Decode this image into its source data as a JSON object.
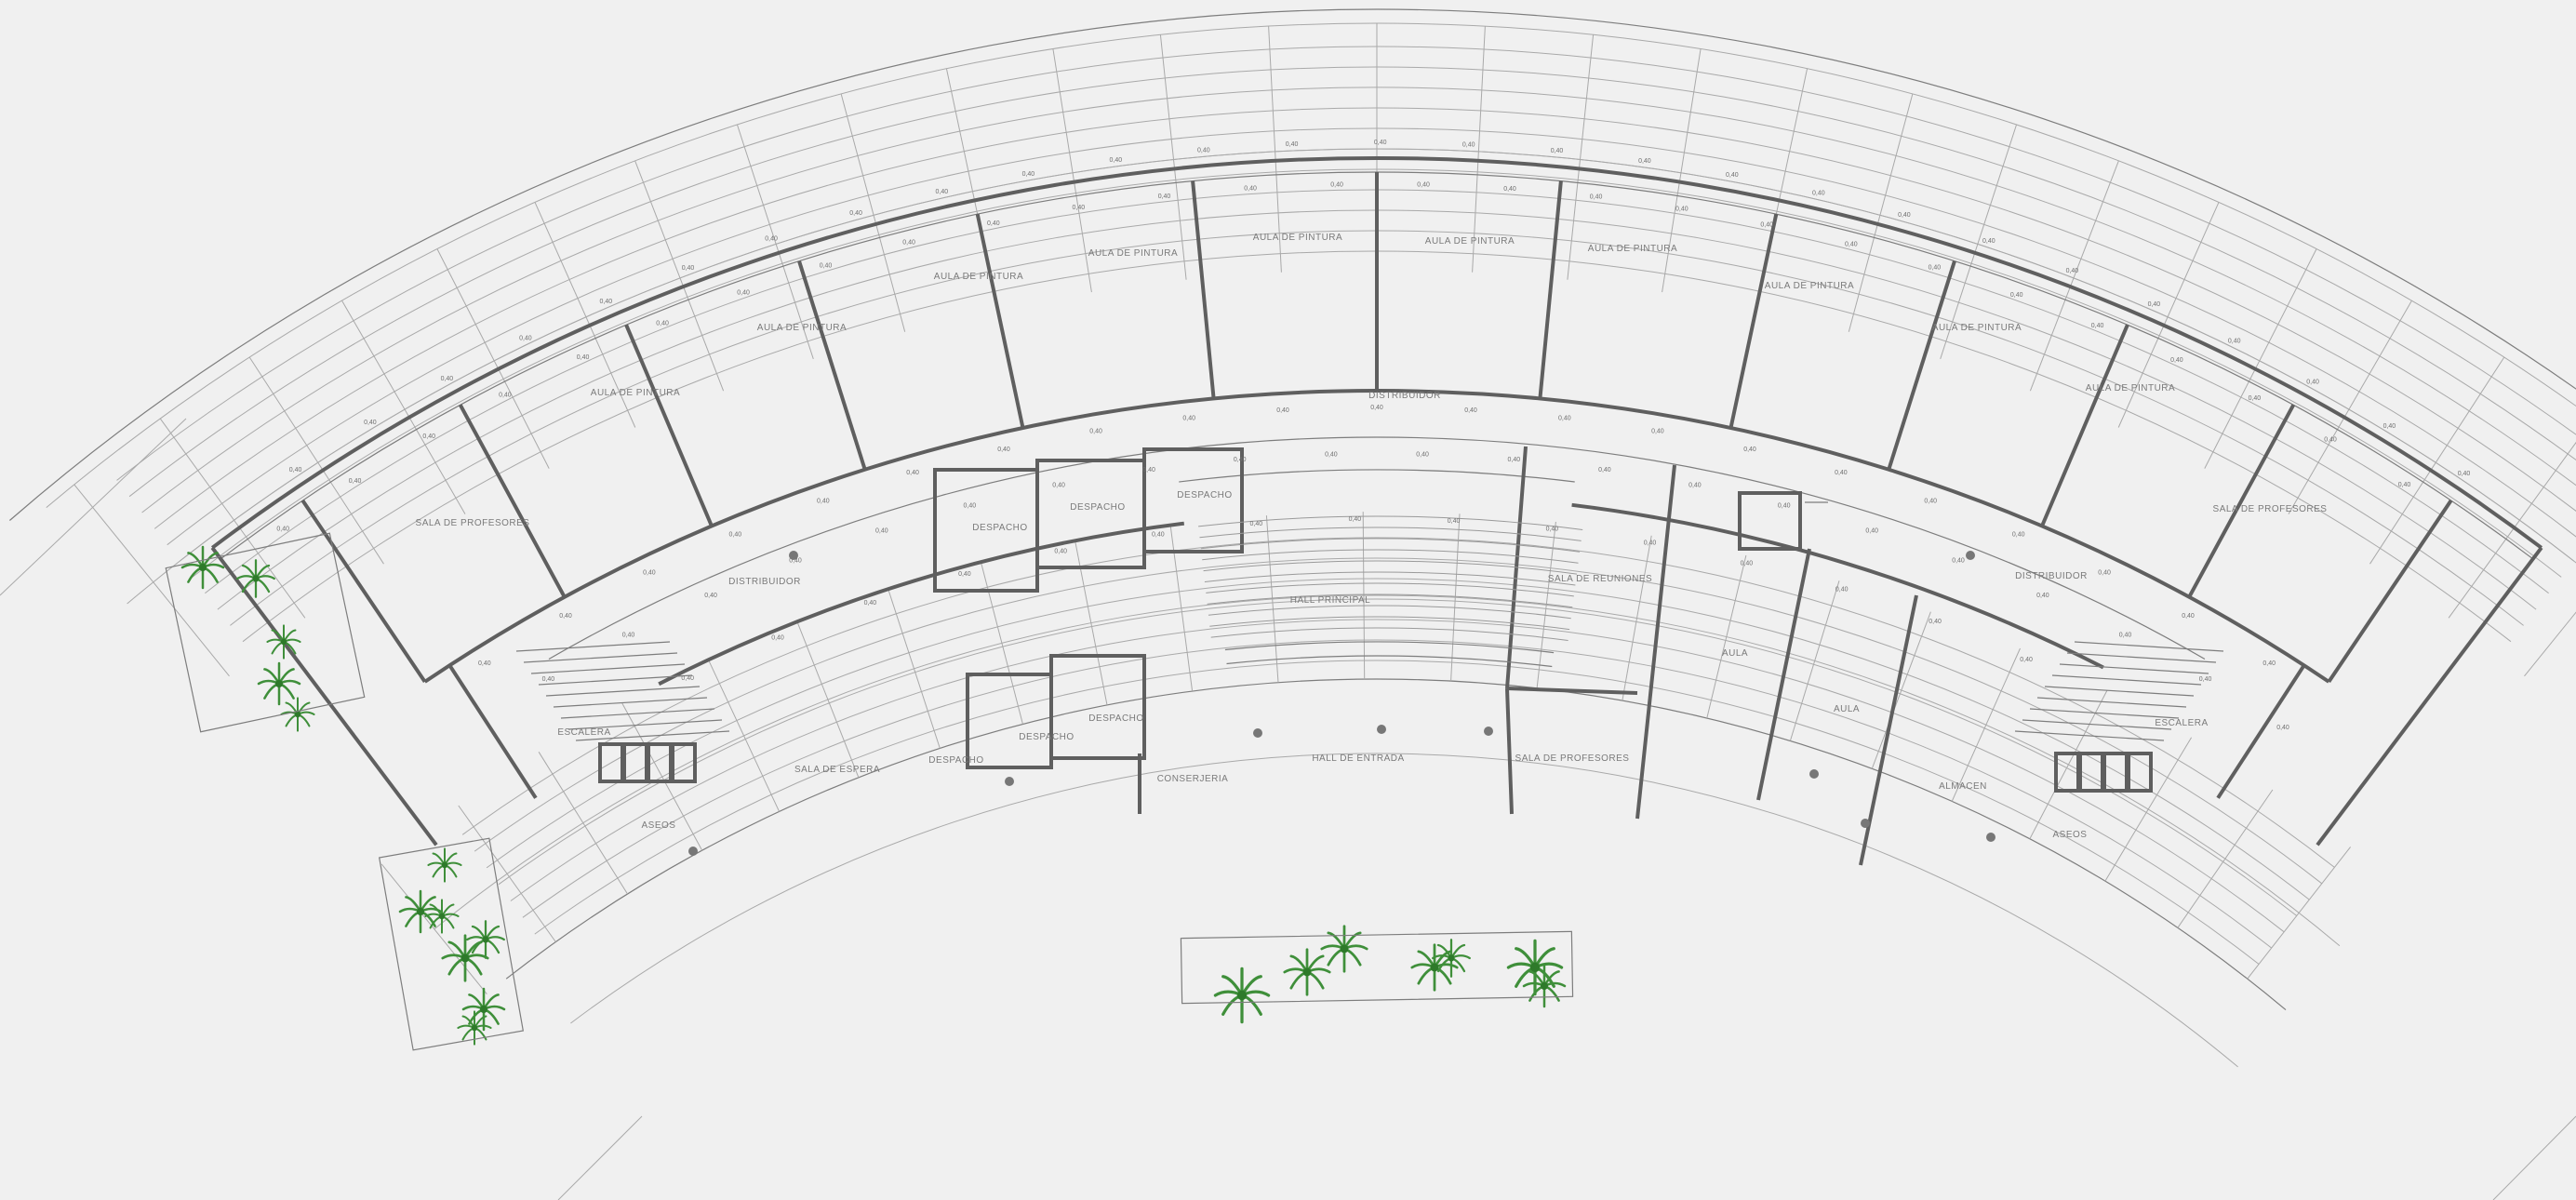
{
  "rooms": {
    "aula_1": "AULA DE PINTURA",
    "aula_2": "AULA DE PINTURA",
    "aula_3": "AULA DE PINTURA",
    "aula_4": "AULA DE PINTURA",
    "aula_5": "AULA DE PINTURA",
    "aula_6": "AULA DE PINTURA",
    "aula_7": "AULA DE PINTURA",
    "aula_8": "AULA DE PINTURA",
    "aula_9": "AULA DE PINTURA",
    "aula_10": "AULA DE PINTURA",
    "sala_profesores": "SALA DE PROFESORES",
    "sala_profesores_b": "SALA DE PROFESORES",
    "sala_reuniones": "SALA DE REUNIONES",
    "sala_espera": "SALA DE ESPERA",
    "hall_principal": "HALL PRINCIPAL",
    "hall_entrada": "HALL DE ENTRADA",
    "distribuidor_izq": "DISTRIBUIDOR",
    "distribuidor_der": "DISTRIBUIDOR",
    "distribuidor_centro": "DISTRIBUIDOR",
    "despacho_1": "DESPACHO",
    "despacho_2": "DESPACHO",
    "despacho_3": "DESPACHO",
    "despacho_4": "DESPACHO",
    "despacho_5": "DESPACHO",
    "despacho_6": "DESPACHO",
    "conserjeria": "CONSERJERIA",
    "aseos_izq": "ASEOS",
    "aseos_der": "ASEOS",
    "escalera_izq": "ESCALERA",
    "escalera_der": "ESCALERA",
    "aula_b1": "AULA",
    "aula_b2": "AULA",
    "almacen": "ALMACEN"
  },
  "dimension_tag": "0,40",
  "colors": {
    "line": "#7d7d7d",
    "wall": "#5f5f5f",
    "vegetation": "#3f8f3a",
    "background": "#f0f0f0"
  }
}
